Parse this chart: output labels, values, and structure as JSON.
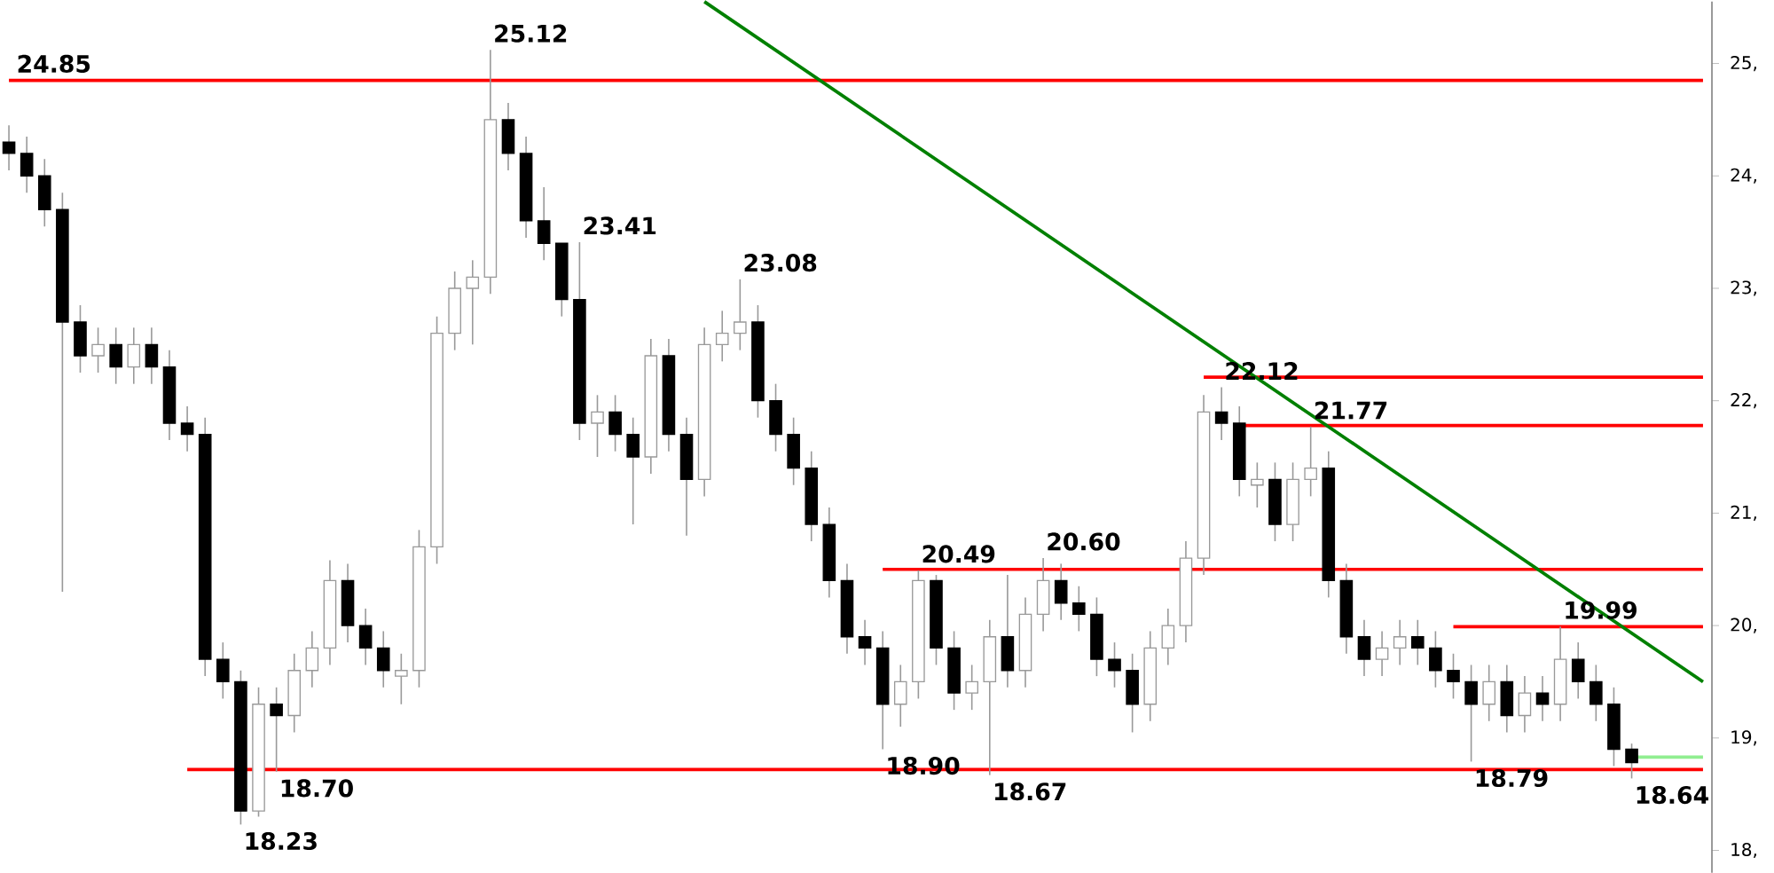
{
  "chart_data": {
    "type": "candlestick",
    "categories": [
      null,
      null,
      null,
      null,
      null,
      null,
      null,
      null,
      null,
      null,
      null,
      null,
      null,
      null,
      null,
      null,
      null,
      null,
      null,
      null,
      null,
      null,
      null,
      null,
      null,
      null,
      null,
      null,
      null,
      null,
      null,
      null,
      null,
      null,
      null,
      null,
      null,
      null,
      null,
      null,
      null,
      null,
      null,
      null,
      null,
      null,
      null,
      null,
      null,
      null,
      null,
      null,
      null,
      null,
      null,
      null,
      null,
      null,
      null,
      null,
      null,
      null,
      null,
      null,
      null,
      null,
      null,
      null,
      null,
      null,
      null,
      null,
      null,
      null,
      null,
      null,
      null,
      null,
      null,
      null,
      null,
      null,
      null,
      null,
      null,
      null,
      null,
      null,
      null,
      null,
      null,
      null,
      null,
      null,
      null,
      null
    ],
    "ohlc": [
      [
        24.3,
        24.45,
        24.05,
        24.2
      ],
      [
        24.2,
        24.35,
        23.85,
        24.0
      ],
      [
        24.0,
        24.15,
        23.55,
        23.7
      ],
      [
        23.7,
        23.85,
        20.3,
        22.7
      ],
      [
        22.7,
        22.85,
        22.25,
        22.4
      ],
      [
        22.4,
        22.65,
        22.25,
        22.5
      ],
      [
        22.5,
        22.65,
        22.15,
        22.3
      ],
      [
        22.3,
        22.65,
        22.15,
        22.5
      ],
      [
        22.5,
        22.65,
        22.15,
        22.3
      ],
      [
        22.3,
        22.45,
        21.65,
        21.8
      ],
      [
        21.8,
        21.95,
        21.55,
        21.7
      ],
      [
        21.7,
        21.85,
        19.55,
        19.7
      ],
      [
        19.7,
        19.85,
        19.35,
        19.5
      ],
      [
        19.5,
        19.6,
        18.23,
        18.35
      ],
      [
        18.35,
        19.45,
        18.3,
        19.3
      ],
      [
        19.3,
        19.45,
        18.7,
        19.2
      ],
      [
        19.2,
        19.75,
        19.05,
        19.6
      ],
      [
        19.6,
        19.95,
        19.45,
        19.8
      ],
      [
        19.8,
        20.58,
        19.65,
        20.4
      ],
      [
        20.4,
        20.55,
        19.85,
        20.0
      ],
      [
        20.0,
        20.15,
        19.65,
        19.8
      ],
      [
        19.8,
        19.95,
        19.45,
        19.6
      ],
      [
        19.55,
        19.75,
        19.3,
        19.6
      ],
      [
        19.6,
        20.85,
        19.45,
        20.7
      ],
      [
        20.7,
        22.75,
        20.55,
        22.6
      ],
      [
        22.6,
        23.15,
        22.45,
        23.0
      ],
      [
        23.0,
        23.25,
        22.5,
        23.1
      ],
      [
        23.1,
        25.12,
        22.95,
        24.5
      ],
      [
        24.5,
        24.65,
        24.05,
        24.2
      ],
      [
        24.2,
        24.35,
        23.45,
        23.6
      ],
      [
        23.6,
        23.9,
        23.25,
        23.4
      ],
      [
        23.4,
        23.4,
        22.75,
        22.9
      ],
      [
        22.9,
        23.41,
        21.65,
        21.8
      ],
      [
        21.8,
        22.05,
        21.5,
        21.9
      ],
      [
        21.9,
        22.05,
        21.55,
        21.7
      ],
      [
        21.7,
        21.85,
        20.9,
        21.5
      ],
      [
        21.5,
        22.55,
        21.35,
        22.4
      ],
      [
        22.4,
        22.55,
        21.55,
        21.7
      ],
      [
        21.7,
        21.85,
        20.8,
        21.3
      ],
      [
        21.3,
        22.65,
        21.15,
        22.5
      ],
      [
        22.5,
        22.8,
        22.35,
        22.6
      ],
      [
        22.6,
        23.08,
        22.45,
        22.7
      ],
      [
        22.7,
        22.85,
        21.85,
        22.0
      ],
      [
        22.0,
        22.15,
        21.55,
        21.7
      ],
      [
        21.7,
        21.85,
        21.25,
        21.4
      ],
      [
        21.4,
        21.55,
        20.75,
        20.9
      ],
      [
        20.9,
        21.05,
        20.25,
        20.4
      ],
      [
        20.4,
        20.55,
        19.75,
        19.9
      ],
      [
        19.9,
        20.05,
        19.65,
        19.8
      ],
      [
        19.8,
        19.95,
        18.9,
        19.3
      ],
      [
        19.3,
        19.65,
        19.1,
        19.5
      ],
      [
        19.5,
        20.49,
        19.35,
        20.4
      ],
      [
        20.4,
        20.45,
        19.65,
        19.8
      ],
      [
        19.8,
        19.95,
        19.25,
        19.4
      ],
      [
        19.4,
        19.65,
        19.25,
        19.5
      ],
      [
        19.5,
        20.05,
        18.67,
        19.9
      ],
      [
        19.9,
        20.45,
        19.45,
        19.6
      ],
      [
        19.6,
        20.25,
        19.45,
        20.1
      ],
      [
        20.1,
        20.6,
        19.95,
        20.4
      ],
      [
        20.4,
        20.55,
        20.05,
        20.2
      ],
      [
        20.2,
        20.35,
        19.95,
        20.1
      ],
      [
        20.1,
        20.25,
        19.55,
        19.7
      ],
      [
        19.7,
        19.85,
        19.45,
        19.6
      ],
      [
        19.6,
        19.75,
        19.05,
        19.3
      ],
      [
        19.3,
        19.95,
        19.15,
        19.8
      ],
      [
        19.8,
        20.15,
        19.65,
        20.0
      ],
      [
        20.0,
        20.75,
        19.85,
        20.6
      ],
      [
        20.6,
        22.05,
        20.45,
        21.9
      ],
      [
        21.9,
        22.12,
        21.65,
        21.8
      ],
      [
        21.8,
        21.95,
        21.15,
        21.3
      ],
      [
        21.25,
        21.45,
        21.05,
        21.3
      ],
      [
        21.3,
        21.45,
        20.75,
        20.9
      ],
      [
        20.9,
        21.45,
        20.75,
        21.3
      ],
      [
        21.3,
        21.77,
        21.15,
        21.4
      ],
      [
        21.4,
        21.55,
        20.25,
        20.4
      ],
      [
        20.4,
        20.55,
        19.75,
        19.9
      ],
      [
        19.9,
        20.05,
        19.55,
        19.7
      ],
      [
        19.7,
        19.95,
        19.55,
        19.8
      ],
      [
        19.8,
        20.05,
        19.65,
        19.9
      ],
      [
        19.9,
        20.05,
        19.65,
        19.8
      ],
      [
        19.8,
        19.95,
        19.45,
        19.6
      ],
      [
        19.6,
        19.75,
        19.35,
        19.5
      ],
      [
        19.5,
        19.65,
        18.79,
        19.3
      ],
      [
        19.3,
        19.65,
        19.15,
        19.5
      ],
      [
        19.5,
        19.65,
        19.05,
        19.2
      ],
      [
        19.2,
        19.55,
        19.05,
        19.4
      ],
      [
        19.4,
        19.55,
        19.15,
        19.3
      ],
      [
        19.3,
        19.99,
        19.15,
        19.7
      ],
      [
        19.7,
        19.85,
        19.35,
        19.5
      ],
      [
        19.5,
        19.65,
        19.15,
        19.3
      ],
      [
        19.3,
        19.45,
        18.75,
        18.9
      ],
      [
        18.9,
        18.95,
        18.64,
        18.78
      ],
      null,
      null,
      null,
      null
    ],
    "series": [
      {
        "type": "line",
        "color": "#ff0000",
        "name": "24.85",
        "values": [
          24.85,
          null,
          null,
          null,
          null,
          null,
          null,
          null,
          null,
          null,
          null,
          null,
          null,
          null,
          null,
          null,
          null,
          null,
          null,
          null,
          null,
          null,
          null,
          null,
          null,
          null,
          null,
          null,
          null,
          null,
          null,
          null,
          null,
          null,
          null,
          null,
          null,
          null,
          null,
          null,
          null,
          null,
          null,
          null,
          null,
          null,
          null,
          null,
          null,
          null,
          null,
          null,
          null,
          null,
          null,
          null,
          null,
          null,
          null,
          null,
          null,
          null,
          null,
          null,
          null,
          null,
          null,
          null,
          null,
          null,
          null,
          null,
          null,
          null,
          null,
          null,
          null,
          null,
          null,
          null,
          null,
          null,
          null,
          null,
          null,
          null,
          null,
          null,
          null,
          null,
          null,
          null,
          null,
          null,
          null,
          24.85
        ]
      },
      {
        "type": "line",
        "color": "#ff0000",
        "values": [
          null,
          null,
          null,
          null,
          null,
          null,
          null,
          null,
          null,
          null,
          null,
          null,
          null,
          null,
          null,
          null,
          null,
          null,
          null,
          null,
          null,
          null,
          null,
          null,
          null,
          null,
          null,
          null,
          null,
          null,
          null,
          null,
          null,
          null,
          null,
          null,
          null,
          null,
          null,
          null,
          null,
          null,
          null,
          null,
          null,
          null,
          null,
          null,
          null,
          null,
          null,
          null,
          null,
          null,
          null,
          null,
          null,
          null,
          null,
          null,
          null,
          null,
          null,
          null,
          null,
          null,
          null,
          22.21,
          null,
          null,
          null,
          null,
          null,
          null,
          null,
          null,
          null,
          null,
          null,
          null,
          null,
          null,
          null,
          null,
          null,
          null,
          null,
          null,
          null,
          null,
          null,
          null,
          null,
          null,
          null,
          22.21
        ]
      },
      {
        "type": "line",
        "color": "#ff0000",
        "values": [
          null,
          null,
          null,
          null,
          null,
          null,
          null,
          null,
          null,
          null,
          null,
          null,
          null,
          null,
          null,
          null,
          null,
          null,
          null,
          null,
          null,
          null,
          null,
          null,
          null,
          null,
          null,
          null,
          null,
          null,
          null,
          null,
          null,
          null,
          null,
          null,
          null,
          null,
          null,
          null,
          null,
          null,
          null,
          null,
          null,
          null,
          null,
          null,
          null,
          null,
          null,
          null,
          null,
          null,
          null,
          null,
          null,
          null,
          null,
          null,
          null,
          null,
          null,
          null,
          null,
          null,
          null,
          null,
          null,
          21.78,
          null,
          null,
          null,
          null,
          null,
          null,
          null,
          null,
          null,
          null,
          null,
          null,
          null,
          null,
          null,
          null,
          null,
          null,
          null,
          null,
          null,
          null,
          null,
          null,
          null,
          21.78
        ]
      },
      {
        "type": "line",
        "color": "#ff0000",
        "values": [
          null,
          null,
          null,
          null,
          null,
          null,
          null,
          null,
          null,
          null,
          null,
          null,
          null,
          null,
          null,
          null,
          null,
          null,
          null,
          null,
          null,
          null,
          null,
          null,
          null,
          null,
          null,
          null,
          null,
          null,
          null,
          null,
          null,
          null,
          null,
          null,
          null,
          null,
          null,
          null,
          null,
          null,
          null,
          null,
          null,
          null,
          null,
          null,
          null,
          20.5,
          null,
          null,
          null,
          null,
          null,
          null,
          null,
          null,
          null,
          null,
          null,
          null,
          null,
          null,
          null,
          null,
          null,
          null,
          null,
          null,
          null,
          null,
          null,
          null,
          null,
          null,
          null,
          null,
          null,
          null,
          null,
          null,
          null,
          null,
          null,
          null,
          null,
          null,
          null,
          null,
          null,
          null,
          null,
          null,
          null,
          20.5
        ]
      },
      {
        "type": "line",
        "color": "#ff0000",
        "values": [
          null,
          null,
          null,
          null,
          null,
          null,
          null,
          null,
          null,
          null,
          null,
          null,
          null,
          null,
          null,
          null,
          null,
          null,
          null,
          null,
          null,
          null,
          null,
          null,
          null,
          null,
          null,
          null,
          null,
          null,
          null,
          null,
          null,
          null,
          null,
          null,
          null,
          null,
          null,
          null,
          null,
          null,
          null,
          null,
          null,
          null,
          null,
          null,
          null,
          null,
          null,
          null,
          null,
          null,
          null,
          null,
          null,
          null,
          null,
          null,
          null,
          null,
          null,
          null,
          null,
          null,
          null,
          null,
          null,
          null,
          null,
          null,
          null,
          null,
          null,
          null,
          null,
          null,
          null,
          null,
          null,
          19.99,
          null,
          null,
          null,
          null,
          null,
          null,
          null,
          null,
          null,
          null,
          null,
          null,
          null,
          19.99
        ]
      },
      {
        "type": "line",
        "color": "#ff0000",
        "values": [
          null,
          null,
          null,
          null,
          null,
          null,
          null,
          null,
          null,
          null,
          18.72,
          null,
          null,
          null,
          null,
          null,
          null,
          null,
          null,
          null,
          null,
          null,
          null,
          null,
          null,
          null,
          null,
          null,
          null,
          null,
          null,
          null,
          null,
          null,
          null,
          null,
          null,
          null,
          null,
          null,
          null,
          null,
          null,
          null,
          null,
          null,
          null,
          null,
          null,
          null,
          null,
          null,
          null,
          null,
          null,
          null,
          null,
          null,
          null,
          null,
          null,
          null,
          null,
          null,
          null,
          null,
          null,
          null,
          null,
          null,
          null,
          null,
          null,
          null,
          null,
          null,
          null,
          null,
          null,
          null,
          null,
          null,
          null,
          null,
          null,
          null,
          null,
          null,
          null,
          null,
          null,
          null,
          null,
          null,
          null,
          18.72
        ]
      },
      {
        "type": "line",
        "color": "#90ee90",
        "values": [
          null,
          null,
          null,
          null,
          null,
          null,
          null,
          null,
          null,
          null,
          null,
          null,
          null,
          null,
          null,
          null,
          null,
          null,
          null,
          null,
          null,
          null,
          null,
          null,
          null,
          null,
          null,
          null,
          null,
          null,
          null,
          null,
          null,
          null,
          null,
          null,
          null,
          null,
          null,
          null,
          null,
          null,
          null,
          null,
          null,
          null,
          null,
          null,
          null,
          null,
          null,
          null,
          null,
          null,
          null,
          null,
          null,
          null,
          null,
          null,
          null,
          null,
          null,
          null,
          null,
          null,
          null,
          null,
          null,
          null,
          null,
          null,
          null,
          null,
          null,
          null,
          null,
          null,
          null,
          null,
          null,
          null,
          null,
          null,
          null,
          null,
          null,
          null,
          null,
          null,
          null,
          18.83,
          null,
          null,
          null,
          18.83
        ]
      },
      {
        "type": "line",
        "color": "#008000",
        "values": [
          null,
          null,
          null,
          null,
          null,
          null,
          null,
          null,
          null,
          null,
          null,
          null,
          null,
          null,
          null,
          null,
          null,
          null,
          null,
          null,
          null,
          null,
          null,
          null,
          null,
          null,
          null,
          null,
          null,
          null,
          null,
          null,
          null,
          null,
          null,
          null,
          null,
          null,
          null,
          25.55,
          null,
          null,
          null,
          null,
          null,
          null,
          null,
          null,
          null,
          null,
          null,
          null,
          null,
          null,
          null,
          null,
          null,
          null,
          null,
          null,
          null,
          null,
          null,
          null,
          null,
          null,
          null,
          null,
          null,
          null,
          null,
          null,
          null,
          null,
          null,
          null,
          null,
          null,
          null,
          null,
          null,
          null,
          null,
          null,
          null,
          null,
          null,
          null,
          null,
          null,
          null,
          null,
          null,
          null,
          null,
          19.5
        ]
      }
    ],
    "value_labels": [
      null,
      null,
      null,
      null,
      null,
      null,
      null,
      null,
      null,
      null,
      null,
      null,
      null,
      "18.23",
      null,
      "18.70",
      null,
      null,
      null,
      null,
      null,
      null,
      null,
      null,
      null,
      null,
      null,
      "25.12",
      null,
      null,
      null,
      null,
      "23.41",
      null,
      null,
      null,
      null,
      null,
      null,
      null,
      null,
      "23.08",
      null,
      null,
      null,
      null,
      null,
      null,
      null,
      "18.90",
      null,
      "20.49",
      null,
      null,
      null,
      "18.67",
      null,
      null,
      "20.60",
      null,
      null,
      null,
      null,
      null,
      null,
      null,
      null,
      null,
      "22.12",
      null,
      null,
      null,
      null,
      "21.77",
      null,
      null,
      null,
      null,
      null,
      null,
      null,
      null,
      "18.79",
      null,
      null,
      null,
      null,
      "19.99",
      null,
      null,
      null,
      "18.64",
      null,
      null,
      null,
      null
    ],
    "ylim": [
      17.8,
      25.55
    ],
    "yticks": [
      {
        "value": 18,
        "label": "18,"
      },
      {
        "value": 19,
        "label": "19,"
      },
      {
        "value": 20,
        "label": "20,"
      },
      {
        "value": 21,
        "label": "21,"
      },
      {
        "value": 22,
        "label": "22,"
      },
      {
        "value": 23,
        "label": "23,"
      },
      {
        "value": 24,
        "label": "24,"
      },
      {
        "value": 25,
        "label": "25,"
      }
    ],
    "tick_labels": "y"
  }
}
